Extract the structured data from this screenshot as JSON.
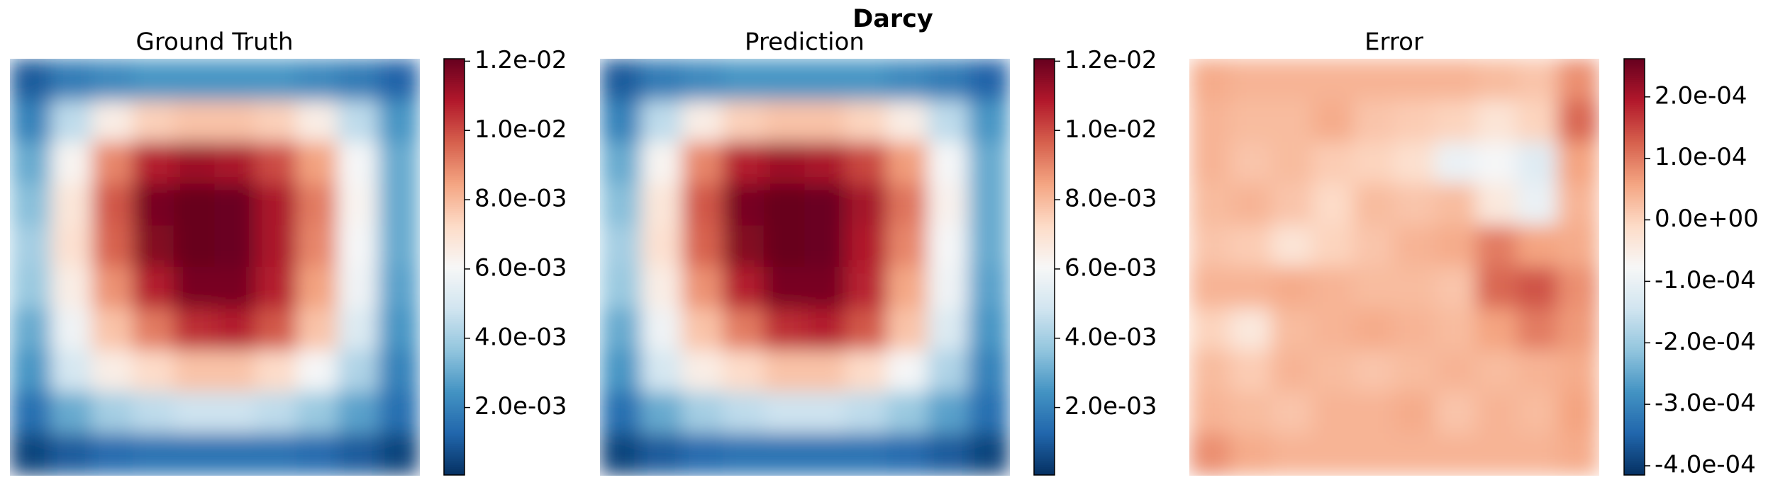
{
  "title": "Darcy",
  "chart_data": [
    {
      "type": "heatmap",
      "title": "Ground Truth",
      "colormap": "RdBu_r",
      "vlim": [
        5e-05,
        0.01207
      ],
      "colorbar_ticks": [
        {
          "value": 0.002,
          "label": "2.0e-03"
        },
        {
          "value": 0.004,
          "label": "4.0e-03"
        },
        {
          "value": 0.006,
          "label": "6.0e-03"
        },
        {
          "value": 0.008,
          "label": "8.0e-03"
        },
        {
          "value": 0.01,
          "label": "1.0e-02"
        },
        {
          "value": 0.012,
          "label": "1.2e-02"
        }
      ],
      "z": [
        [
          0.001,
          0.0018,
          0.0022,
          0.0025,
          0.0025,
          0.0025,
          0.0025,
          0.0022,
          0.0018,
          0.0012
        ],
        [
          0.002,
          0.0045,
          0.0065,
          0.0075,
          0.0078,
          0.0078,
          0.0075,
          0.0065,
          0.0045,
          0.0025
        ],
        [
          0.003,
          0.0062,
          0.009,
          0.0108,
          0.0112,
          0.011,
          0.01,
          0.0085,
          0.006,
          0.003
        ],
        [
          0.0035,
          0.0068,
          0.0098,
          0.0118,
          0.0121,
          0.012,
          0.011,
          0.0092,
          0.0062,
          0.003
        ],
        [
          0.004,
          0.007,
          0.0096,
          0.0116,
          0.0121,
          0.012,
          0.011,
          0.009,
          0.006,
          0.003
        ],
        [
          0.0038,
          0.0065,
          0.0088,
          0.0108,
          0.0118,
          0.0118,
          0.0108,
          0.0085,
          0.0058,
          0.0028
        ],
        [
          0.003,
          0.0058,
          0.0078,
          0.0092,
          0.0105,
          0.0108,
          0.0098,
          0.0078,
          0.0052,
          0.0025
        ],
        [
          0.0025,
          0.005,
          0.0065,
          0.0072,
          0.0078,
          0.0078,
          0.0072,
          0.006,
          0.0042,
          0.002
        ],
        [
          0.0015,
          0.003,
          0.004,
          0.0045,
          0.0048,
          0.0048,
          0.0045,
          0.0038,
          0.0028,
          0.0015
        ],
        [
          0.0005,
          0.001,
          0.0014,
          0.0016,
          0.0016,
          0.0016,
          0.0016,
          0.0014,
          0.001,
          0.0005
        ]
      ]
    },
    {
      "type": "heatmap",
      "title": "Prediction",
      "colormap": "RdBu_r",
      "vlim": [
        5e-05,
        0.01207
      ],
      "colorbar_ticks": [
        {
          "value": 0.002,
          "label": "2.0e-03"
        },
        {
          "value": 0.004,
          "label": "4.0e-03"
        },
        {
          "value": 0.006,
          "label": "6.0e-03"
        },
        {
          "value": 0.008,
          "label": "8.0e-03"
        },
        {
          "value": 0.01,
          "label": "1.0e-02"
        },
        {
          "value": 0.012,
          "label": "1.2e-02"
        }
      ],
      "z": [
        [
          0.001,
          0.0018,
          0.0022,
          0.0025,
          0.0025,
          0.0025,
          0.0025,
          0.0022,
          0.0018,
          0.0012
        ],
        [
          0.002,
          0.0045,
          0.0065,
          0.0075,
          0.0078,
          0.0078,
          0.0074,
          0.0065,
          0.0045,
          0.0025
        ],
        [
          0.003,
          0.0062,
          0.009,
          0.0108,
          0.0112,
          0.011,
          0.0101,
          0.0086,
          0.006,
          0.003
        ],
        [
          0.0035,
          0.0068,
          0.0098,
          0.0118,
          0.0121,
          0.012,
          0.0111,
          0.0093,
          0.0063,
          0.003
        ],
        [
          0.004,
          0.007,
          0.0096,
          0.0116,
          0.0121,
          0.012,
          0.0109,
          0.009,
          0.006,
          0.003
        ],
        [
          0.0038,
          0.0065,
          0.0088,
          0.0108,
          0.0118,
          0.0118,
          0.0107,
          0.0084,
          0.0058,
          0.0028
        ],
        [
          0.003,
          0.0058,
          0.0078,
          0.0092,
          0.0105,
          0.0108,
          0.0098,
          0.0078,
          0.0052,
          0.0025
        ],
        [
          0.0025,
          0.005,
          0.0065,
          0.0072,
          0.0078,
          0.0078,
          0.0072,
          0.006,
          0.0042,
          0.002
        ],
        [
          0.0015,
          0.003,
          0.004,
          0.0045,
          0.0048,
          0.0048,
          0.0045,
          0.0038,
          0.0028,
          0.0015
        ],
        [
          0.0005,
          0.001,
          0.0014,
          0.0016,
          0.0016,
          0.0016,
          0.0016,
          0.0014,
          0.001,
          0.0005
        ]
      ]
    },
    {
      "type": "heatmap",
      "title": "Error",
      "colormap": "RdBu_r",
      "vlim": [
        -0.000415,
        0.000262
      ],
      "colorbar_ticks": [
        {
          "value": -0.0004,
          "label": "-4.0e-04"
        },
        {
          "value": -0.0003,
          "label": "-3.0e-04"
        },
        {
          "value": -0.0002,
          "label": "-2.0e-04"
        },
        {
          "value": -0.0001,
          "label": "-1.0e-04"
        },
        {
          "value": 0,
          "label": "0.0e+00"
        },
        {
          "value": 0.0001,
          "label": "1.0e-04"
        },
        {
          "value": 0.0002,
          "label": "2.0e-04"
        }
      ],
      "z": [
        [
          5e-05,
          4e-05,
          4e-05,
          4e-05,
          4e-05,
          4e-05,
          4e-05,
          3e-05,
          2e-05,
          8e-05
        ],
        [
          4e-05,
          3e-05,
          3e-05,
          5e-05,
          2e-05,
          1e-05,
          0.0,
          -3e-05,
          0.0,
          0.00012
        ],
        [
          4e-05,
          2e-05,
          3e-05,
          1e-05,
          0.0,
          -2e-05,
          -0.0001,
          -8e-05,
          -0.00012,
          6e-05
        ],
        [
          3e-05,
          4e-05,
          2e-05,
          -1e-05,
          3e-05,
          2e-05,
          3e-05,
          -4e-05,
          -0.0001,
          4e-05
        ],
        [
          2e-05,
          1e-05,
          -3e-05,
          0.0,
          2e-05,
          4e-05,
          5e-05,
          0.0001,
          6e-05,
          5e-05
        ],
        [
          4e-05,
          4e-05,
          5e-05,
          4e-05,
          3e-05,
          3e-05,
          2e-05,
          0.00012,
          0.00014,
          8e-05
        ],
        [
          0.0,
          -4e-05,
          3e-05,
          4e-05,
          5e-05,
          4e-05,
          3e-05,
          6e-05,
          0.0001,
          7e-05
        ],
        [
          3e-05,
          1e-05,
          4e-05,
          3e-05,
          2e-05,
          3e-05,
          4e-05,
          3e-05,
          4e-05,
          5e-05
        ],
        [
          4e-05,
          3e-05,
          2e-05,
          4e-05,
          4e-05,
          5e-05,
          2e-05,
          4e-05,
          3e-05,
          6e-05
        ],
        [
          8e-05,
          5e-05,
          4e-05,
          4e-05,
          4e-05,
          4e-05,
          4e-05,
          4e-05,
          4e-05,
          5e-05
        ]
      ]
    }
  ]
}
